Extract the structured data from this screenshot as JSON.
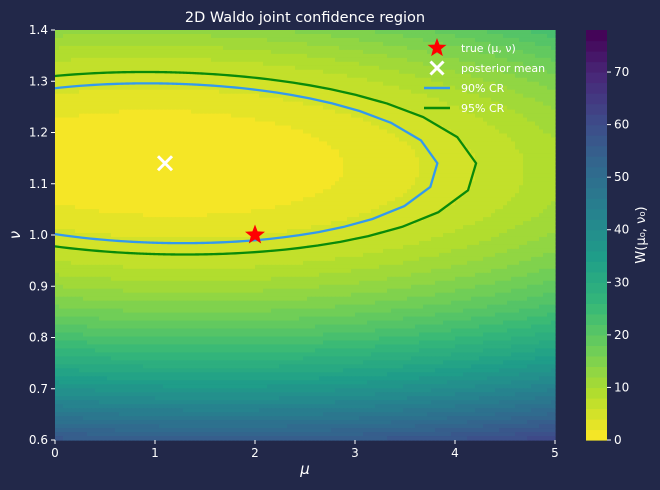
{
  "chart_data": {
    "type": "heatmap",
    "title": "2D Waldo joint confidence region",
    "xlabel": "μ",
    "ylabel": "ν",
    "xlim": [
      0,
      5
    ],
    "ylim": [
      0.6,
      1.4
    ],
    "x_ticks": [
      "0",
      "1",
      "2",
      "3",
      "4",
      "5"
    ],
    "y_ticks": [
      "0.6",
      "0.7",
      "0.8",
      "0.9",
      "1.0",
      "1.1",
      "1.2",
      "1.3",
      "1.4"
    ],
    "colorbar": {
      "label": "W(μ₀, ν₀)",
      "range": [
        0,
        78
      ],
      "ticks": [
        "0",
        "10",
        "20",
        "30",
        "40",
        "50",
        "60",
        "70"
      ],
      "colormap": "viridis_r"
    },
    "surface": {
      "minimum": [
        1.1,
        1.14
      ],
      "min_value": 0
    },
    "points": [
      {
        "name": "true (μ, ν)",
        "x": 2.0,
        "y": 1.0,
        "marker": "star",
        "color": "#ff0000"
      },
      {
        "name": "posterior mean",
        "x": 1.1,
        "y": 1.14,
        "marker": "x",
        "color": "#ffffff"
      }
    ],
    "regions": [
      {
        "name": "90% CR",
        "level": 4.6,
        "color": "#3399ee"
      },
      {
        "name": "95% CR",
        "level": 6.0,
        "color": "#0a8a0a"
      }
    ],
    "legend": {
      "location": "upper right",
      "entries": [
        "true (μ, ν)",
        "posterior mean",
        "90% CR",
        "95% CR"
      ]
    },
    "grid": false
  }
}
